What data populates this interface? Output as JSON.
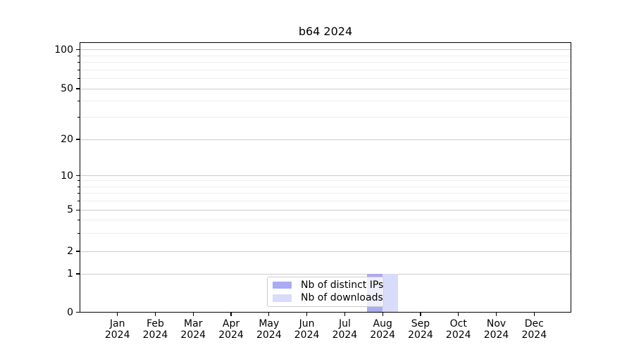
{
  "title": "b64 2024",
  "legend": {
    "position": "lower center",
    "items": [
      {
        "label": "Nb of distinct IPs",
        "color": "#a9abf4"
      },
      {
        "label": "Nb of downloads",
        "color": "#d9dbfa"
      }
    ]
  },
  "axes": {
    "y_major_ticks": [
      100,
      50,
      20,
      10,
      5,
      2,
      1,
      0
    ],
    "y_minor_ticks": [
      90,
      80,
      70,
      60,
      40,
      30,
      9,
      8,
      7,
      6,
      4,
      3
    ],
    "x_ticks": [
      {
        "month": "Jan",
        "year": "2024"
      },
      {
        "month": "Feb",
        "year": "2024"
      },
      {
        "month": "Mar",
        "year": "2024"
      },
      {
        "month": "Apr",
        "year": "2024"
      },
      {
        "month": "May",
        "year": "2024"
      },
      {
        "month": "Jun",
        "year": "2024"
      },
      {
        "month": "Jul",
        "year": "2024"
      },
      {
        "month": "Aug",
        "year": "2024"
      },
      {
        "month": "Sep",
        "year": "2024"
      },
      {
        "month": "Oct",
        "year": "2024"
      },
      {
        "month": "Nov",
        "year": "2024"
      },
      {
        "month": "Dec",
        "year": "2024"
      }
    ]
  },
  "chart_data": {
    "type": "bar",
    "title": "b64 2024",
    "categories": [
      "Jan 2024",
      "Feb 2024",
      "Mar 2024",
      "Apr 2024",
      "May 2024",
      "Jun 2024",
      "Jul 2024",
      "Aug 2024",
      "Sep 2024",
      "Oct 2024",
      "Nov 2024",
      "Dec 2024"
    ],
    "series": [
      {
        "name": "Nb of distinct IPs",
        "color": "#a9abf4",
        "values": [
          0,
          0,
          0,
          0,
          0,
          0,
          0,
          1,
          0,
          0,
          0,
          0
        ]
      },
      {
        "name": "Nb of downloads",
        "color": "#d9dbfa",
        "values": [
          0,
          0,
          0,
          0,
          0,
          0,
          0,
          1,
          0,
          0,
          0,
          0
        ]
      }
    ],
    "xlabel": "",
    "ylabel": "",
    "y_scale": "log-like (linear between 0 and 1), major ticks 0,1,2,5,10,20,50,100",
    "ylim": [
      0,
      115
    ],
    "grid": true,
    "legend_position": "lower center"
  },
  "colors": {
    "bar_distinct_ips": "#a9abf4",
    "bar_downloads": "#d9dbfa",
    "grid_major": "#cbcbcb",
    "grid_minor": "#ededed",
    "axis": "#000000",
    "text": "#000000",
    "legend_border": "#cccccc"
  }
}
